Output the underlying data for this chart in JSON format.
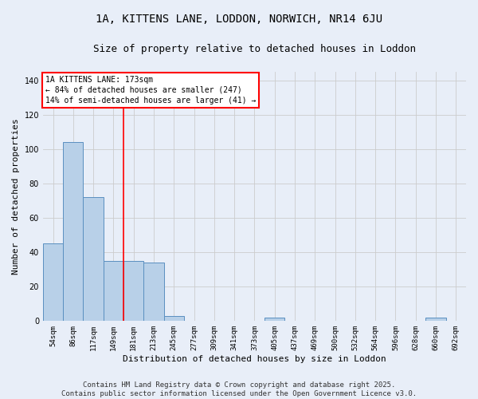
{
  "title": "1A, KITTENS LANE, LODDON, NORWICH, NR14 6JU",
  "subtitle": "Size of property relative to detached houses in Loddon",
  "xlabel": "Distribution of detached houses by size in Loddon",
  "ylabel": "Number of detached properties",
  "categories": [
    "54sqm",
    "86sqm",
    "117sqm",
    "149sqm",
    "181sqm",
    "213sqm",
    "245sqm",
    "277sqm",
    "309sqm",
    "341sqm",
    "373sqm",
    "405sqm",
    "437sqm",
    "469sqm",
    "500sqm",
    "532sqm",
    "564sqm",
    "596sqm",
    "628sqm",
    "660sqm",
    "692sqm"
  ],
  "values": [
    45,
    104,
    72,
    35,
    35,
    34,
    3,
    0,
    0,
    0,
    0,
    2,
    0,
    0,
    0,
    0,
    0,
    0,
    0,
    2,
    0
  ],
  "bar_color": "#b8d0e8",
  "bar_edge_color": "#5a8fc0",
  "grid_color": "#cccccc",
  "background_color": "#e8eef8",
  "vline_x": 3.5,
  "vline_color": "red",
  "annotation_lines": [
    "1A KITTENS LANE: 173sqm",
    "← 84% of detached houses are smaller (247)",
    "14% of semi-detached houses are larger (41) →"
  ],
  "annotation_fontsize": 7,
  "title_fontsize": 10,
  "subtitle_fontsize": 9,
  "tick_fontsize": 6.5,
  "label_fontsize": 8,
  "footer_line1": "Contains HM Land Registry data © Crown copyright and database right 2025.",
  "footer_line2": "Contains public sector information licensed under the Open Government Licence v3.0.",
  "footer_fontsize": 6.5,
  "ylim": [
    0,
    145
  ],
  "yticks": [
    0,
    20,
    40,
    60,
    80,
    100,
    120,
    140
  ]
}
